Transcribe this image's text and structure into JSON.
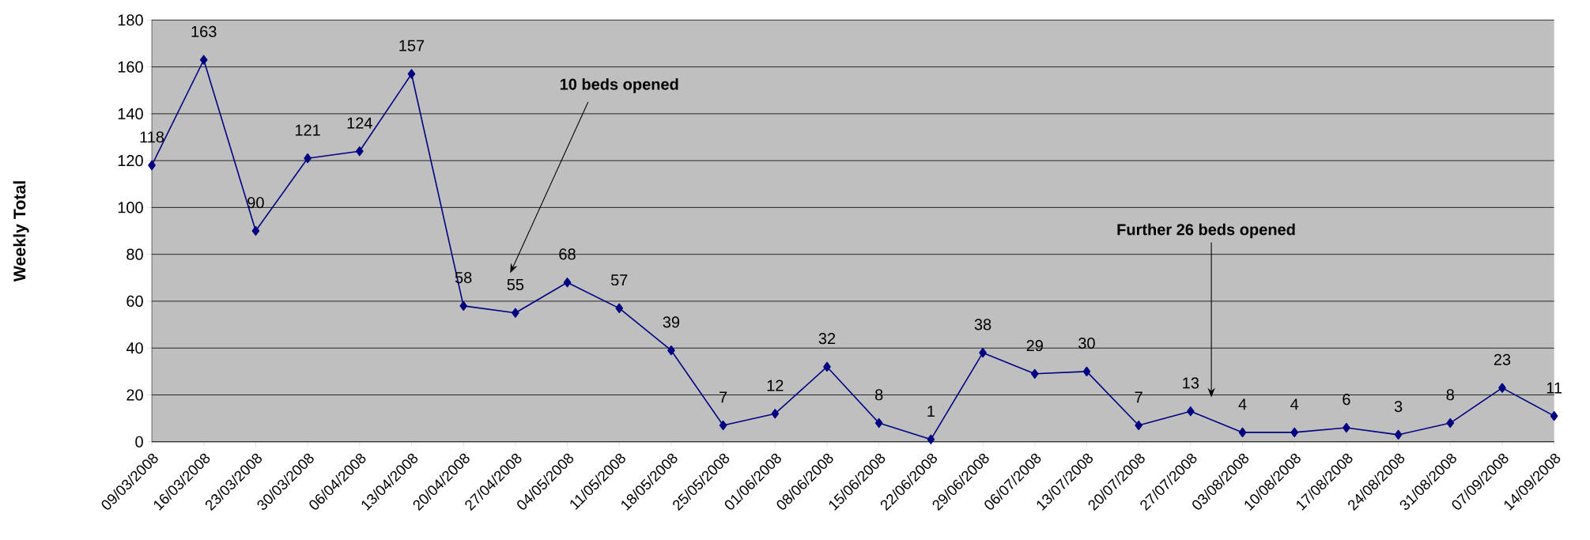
{
  "chart_data": {
    "type": "line",
    "ylabel": "Weekly Total",
    "categories": [
      "09/03/2008",
      "16/03/2008",
      "23/03/2008",
      "30/03/2008",
      "06/04/2008",
      "13/04/2008",
      "20/04/2008",
      "27/04/2008",
      "04/05/2008",
      "11/05/2008",
      "18/05/2008",
      "25/05/2008",
      "01/06/2008",
      "08/06/2008",
      "15/06/2008",
      "22/06/2008",
      "29/06/2008",
      "06/07/2008",
      "13/07/2008",
      "20/07/2008",
      "27/07/2008",
      "03/08/2008",
      "10/08/2008",
      "17/08/2008",
      "24/08/2008",
      "31/08/2008",
      "07/09/2008",
      "14/09/2008"
    ],
    "values": [
      118,
      163,
      90,
      121,
      124,
      157,
      58,
      55,
      68,
      57,
      39,
      7,
      12,
      32,
      8,
      1,
      38,
      29,
      30,
      7,
      13,
      4,
      4,
      6,
      3,
      8,
      23,
      11
    ],
    "color": "#000080",
    "ylim": [
      0,
      180
    ],
    "yticks": [
      0,
      20,
      40,
      60,
      80,
      100,
      120,
      140,
      160,
      180
    ],
    "grid": "y",
    "marker": "diamond",
    "line_style": "solid",
    "data_labels": true,
    "annotations": [
      "10 beds opened",
      "Further 26 beds opened"
    ]
  }
}
